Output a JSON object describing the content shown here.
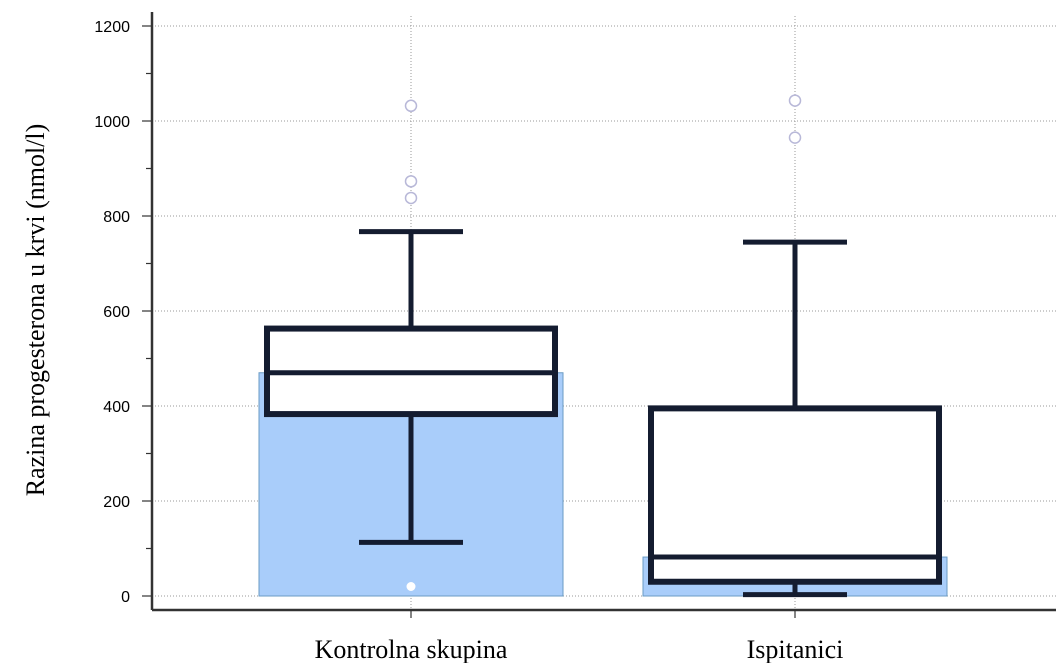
{
  "chart_data": {
    "type": "boxplot",
    "title": "",
    "xlabel": "",
    "ylabel": "Razina progesterona u krvi (nmol/l)",
    "ylim": [
      0,
      1200
    ],
    "yticks": [
      0,
      200,
      400,
      600,
      800,
      1000,
      1200
    ],
    "grid": true,
    "categories": [
      "Kontrolna skupina",
      "Ispitanici"
    ],
    "series": [
      {
        "category": "Kontrolna skupina",
        "bar_value": 470,
        "whisker_low": 113,
        "q1": 383,
        "median": 470,
        "q3": 563,
        "whisker_high": 767,
        "outliers": [
          838,
          873,
          1032
        ],
        "low_marker": 20
      },
      {
        "category": "Ispitanici",
        "bar_value": 82,
        "whisker_low": 3,
        "q1": 30,
        "median": 82,
        "q3": 395,
        "whisker_high": 745,
        "outliers": [
          965,
          1043
        ]
      }
    ],
    "colors": {
      "bar_fill": "#a9cdfa",
      "bar_stroke": "#6a9bc4",
      "box_stroke": "#141c30",
      "outlier_stroke": "#b8b8d8",
      "grid": "#9a9a9a",
      "axis": "#333333"
    }
  }
}
